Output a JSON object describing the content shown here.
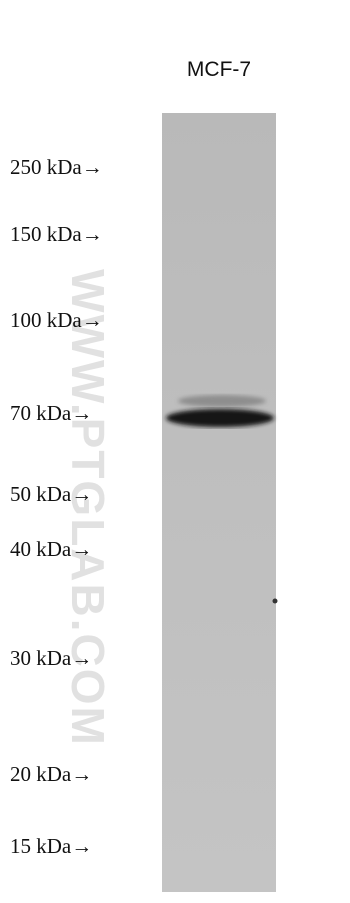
{
  "lane_label": "MCF-7",
  "markers": [
    "250 kDa→",
    "150 kDa→",
    "100 kDa→",
    "70 kDa→",
    "50 kDa→",
    "40 kDa→",
    "30 kDa→",
    "20 kDa→",
    "15 kDa→"
  ],
  "watermark": "WWW.PTGLAB.COM"
}
